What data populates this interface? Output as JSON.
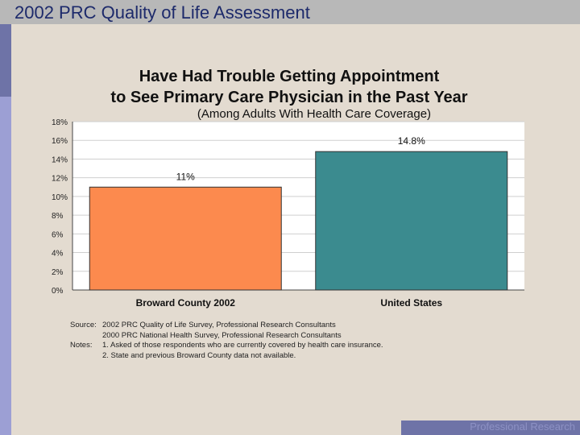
{
  "header": {
    "title": "2002 PRC Quality of Life Assessment"
  },
  "chart_data": {
    "type": "bar",
    "title_line1": "Have Had Trouble Getting Appointment",
    "title_line2": "to See Primary Care Physician in the Past Year",
    "subtitle": "(Among Adults With Health Care Coverage)",
    "categories": [
      "Broward County 2002",
      "United States"
    ],
    "values": [
      11,
      14.8
    ],
    "value_labels": [
      "11%",
      "14.8%"
    ],
    "bar_colors": [
      "#fc8a4e",
      "#3b8b8f"
    ],
    "ylim": [
      0,
      18
    ],
    "yticks": [
      0,
      2,
      4,
      6,
      8,
      10,
      12,
      14,
      16,
      18
    ],
    "ytick_labels": [
      "0%",
      "2%",
      "4%",
      "6%",
      "8%",
      "10%",
      "12%",
      "14%",
      "16%",
      "18%"
    ],
    "grid": true,
    "xlabel": "",
    "ylabel": ""
  },
  "footnotes": {
    "source_label": "Source:",
    "source_lines": [
      "2002 PRC Quality of Life Survey, Professional Research Consultants",
      "2000 PRC National Health Survey, Professional Research Consultants"
    ],
    "notes_label": "Notes:",
    "notes_lines": [
      "1.  Asked of those respondents who are currently covered by health care insurance.",
      "2.  State and previous Broward County data not available."
    ]
  },
  "footer": {
    "brand": "Professional Research Consultants"
  }
}
